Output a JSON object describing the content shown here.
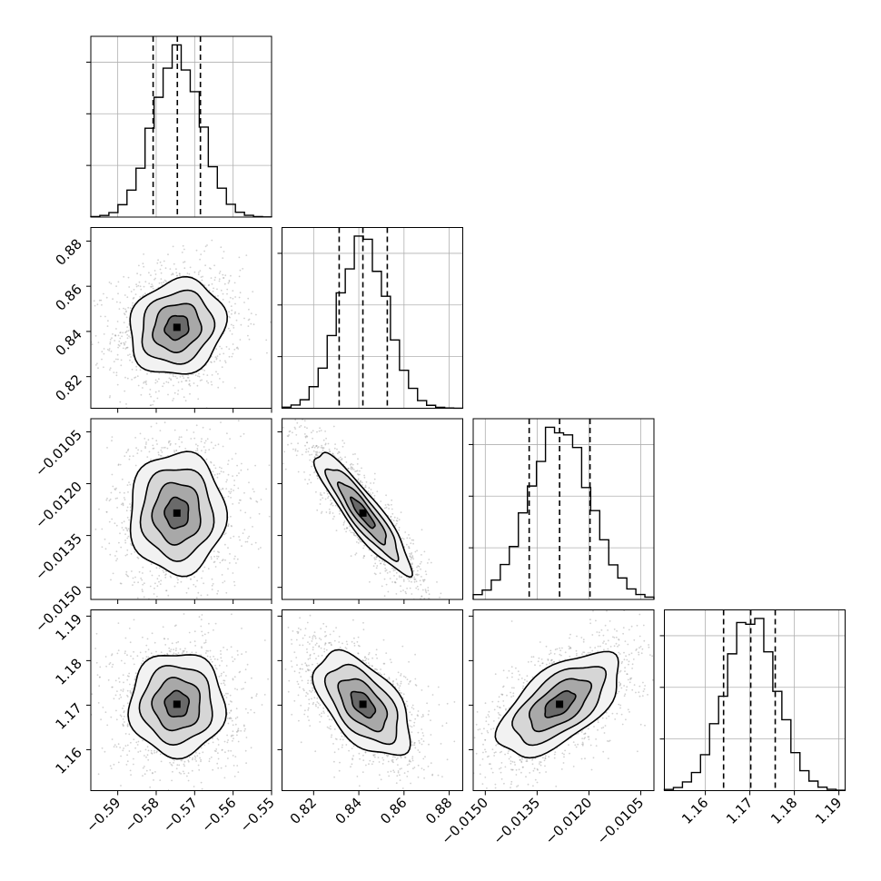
{
  "chart_data": {
    "type": "corner",
    "parameters": [
      {
        "range": [
          -0.597,
          -0.55
        ],
        "ticks": [
          "−0.59",
          "−0.58",
          "−0.57",
          "−0.56",
          "−0.55"
        ],
        "tick_values": [
          -0.59,
          -0.58,
          -0.57,
          -0.56,
          -0.55
        ],
        "quantiles": [
          -0.5808,
          -0.5745,
          -0.5685
        ],
        "mean": -0.5746,
        "std": 0.0062
      },
      {
        "range": [
          0.806,
          0.886
        ],
        "ticks": [
          "0.82",
          "0.84",
          "0.86",
          "0.88"
        ],
        "tick_values": [
          0.82,
          0.84,
          0.86,
          0.88
        ],
        "quantiles": [
          0.8313,
          0.8418,
          0.8526
        ],
        "mean": 0.8418,
        "std": 0.0106
      },
      {
        "range": [
          -0.01535,
          -0.01012
        ],
        "ticks": [
          "−0.0150",
          "−0.0135",
          "−0.0120",
          "−0.0105"
        ],
        "tick_values": [
          -0.015,
          -0.0135,
          -0.012,
          -0.0105
        ],
        "quantiles": [
          -0.01373,
          -0.01285,
          -0.01197
        ],
        "mean": -0.01285,
        "std": 0.00088
      },
      {
        "range": [
          1.1508,
          1.1914
        ],
        "ticks": [
          "1.16",
          "1.17",
          "1.18",
          "1.19"
        ],
        "tick_values": [
          1.16,
          1.17,
          1.18,
          1.19
        ],
        "quantiles": [
          1.1641,
          1.1702,
          1.1757
        ],
        "mean": 1.1702,
        "std": 0.0058
      }
    ],
    "correlations": [
      {
        "pair": [
          1,
          0
        ],
        "rho": 0.12
      },
      {
        "pair": [
          2,
          0
        ],
        "rho": 0.0
      },
      {
        "pair": [
          2,
          1
        ],
        "rho": -0.9
      },
      {
        "pair": [
          3,
          0
        ],
        "rho": 0.0
      },
      {
        "pair": [
          3,
          1
        ],
        "rho": -0.55
      },
      {
        "pair": [
          3,
          2
        ],
        "rho": 0.6
      }
    ],
    "histogram_bins": 20,
    "quantile_lines": "dashed",
    "contour_levels": 4,
    "grid": true
  }
}
